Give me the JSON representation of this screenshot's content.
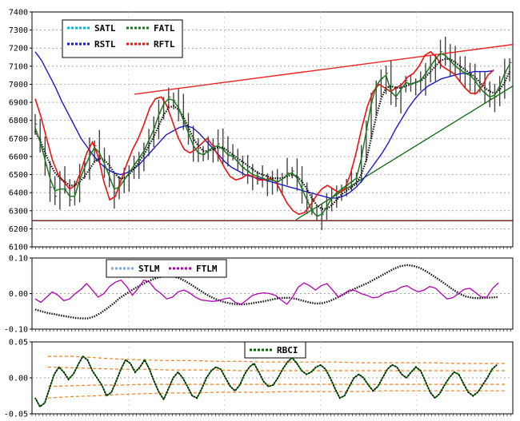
{
  "chart_data": [
    {
      "type": "line",
      "panel": "price",
      "ylim": [
        6100,
        7400
      ],
      "yticks": [
        "7400",
        "7300",
        "7200",
        "7100",
        "7000",
        "6900",
        "6800",
        "6700",
        "6600",
        "6500",
        "6400",
        "6300",
        "6200",
        "6100"
      ],
      "grid": true,
      "legend_position": "top-left",
      "series": [
        {
          "name": "SATL",
          "color": "#00bcd4"
        },
        {
          "name": "FATL",
          "color": "#1b7a1b"
        },
        {
          "name": "RSTL",
          "color": "#1a1acc"
        },
        {
          "name": "RFTL",
          "color": "#ee1111"
        }
      ],
      "bars_close": [
        6780,
        6660,
        6550,
        6430,
        6380,
        6480,
        6420,
        6360,
        6400,
        6500,
        6560,
        6620,
        6660,
        6600,
        6540,
        6470,
        6400,
        6440,
        6480,
        6520,
        6560,
        6600,
        6640,
        6700,
        6760,
        6840,
        6900,
        6930,
        6910,
        6860,
        6790,
        6720,
        6650,
        6620,
        6610,
        6640,
        6660,
        6670,
        6640,
        6610,
        6600,
        6570,
        6540,
        6520,
        6500,
        6490,
        6480,
        6470,
        6470,
        6460,
        6480,
        6510,
        6520,
        6480,
        6420,
        6360,
        6300,
        6270,
        6280,
        6320,
        6370,
        6400,
        6420,
        6440,
        6460,
        6480,
        6600,
        6750,
        6900,
        7000,
        7030,
        7060,
        6950,
        6920,
        6980,
        7020,
        7000,
        7010,
        7020,
        7060,
        7100,
        7140,
        7180,
        7170,
        7130,
        7100,
        7080,
        7060,
        7050,
        7020,
        6980,
        6950,
        6920,
        6930,
        6990,
        7060,
        7120
      ],
      "satl": [
        6740,
        6690,
        6620,
        6560,
        6510,
        6480,
        6460,
        6440,
        6440,
        6460,
        6490,
        6530,
        6570,
        6590,
        6580,
        6550,
        6510,
        6480,
        6480,
        6500,
        6530,
        6570,
        6610,
        6660,
        6710,
        6770,
        6830,
        6870,
        6880,
        6860,
        6820,
        6760,
        6700,
        6660,
        6630,
        6630,
        6640,
        6650,
        6650,
        6630,
        6610,
        6590,
        6570,
        6550,
        6530,
        6510,
        6500,
        6490,
        6480,
        6480,
        6480,
        6490,
        6500,
        6490,
        6460,
        6420,
        6370,
        6330,
        6310,
        6310,
        6330,
        6360,
        6390,
        6410,
        6430,
        6450,
        6500,
        6580,
        6700,
        6820,
        6920,
        6980,
        6990,
        6980,
        6980,
        6990,
        7000,
        7010,
        7020,
        7040,
        7070,
        7100,
        7130,
        7140,
        7140,
        7120,
        7100,
        7080,
        7060,
        7040,
        7010,
        6980,
        6960,
        6950,
        6970,
        7010,
        7070
      ],
      "fatl": [
        6760,
        6680,
        6580,
        6480,
        6410,
        6420,
        6420,
        6380,
        6380,
        6470,
        6540,
        6600,
        6650,
        6620,
        6560,
        6490,
        6420,
        6430,
        6470,
        6510,
        6550,
        6590,
        6630,
        6690,
        6750,
        6830,
        6890,
        6920,
        6910,
        6870,
        6800,
        6730,
        6660,
        6620,
        6610,
        6630,
        6650,
        6660,
        6640,
        6610,
        6600,
        6570,
        6540,
        6520,
        6500,
        6490,
        6480,
        6470,
        6470,
        6460,
        6475,
        6500,
        6510,
        6480,
        6420,
        6360,
        6300,
        6270,
        6280,
        6320,
        6370,
        6400,
        6420,
        6440,
        6460,
        6480,
        6590,
        6740,
        6890,
        6990,
        7030,
        7050,
        6960,
        6930,
        6970,
        7010,
        7000,
        7010,
        7020,
        7060,
        7100,
        7140,
        7170,
        7160,
        7130,
        7100,
        7080,
        7060,
        7050,
        7020,
        6980,
        6950,
        6930,
        6940,
        6990,
        7060,
        7110
      ],
      "rstl": [
        7180,
        7130,
        7060,
        6990,
        6910,
        6840,
        6770,
        6700,
        6650,
        6600,
        6560,
        6530,
        6510,
        6500,
        6510,
        6530,
        6560,
        6600,
        6640,
        6680,
        6720,
        6740,
        6760,
        6770,
        6760,
        6730,
        6690,
        6650,
        6610,
        6570,
        6540,
        6520,
        6500,
        6490,
        6480,
        6470,
        6460,
        6450,
        6440,
        6430,
        6420,
        6410,
        6400,
        6390,
        6380,
        6370,
        6370,
        6380,
        6400,
        6430,
        6470,
        6520,
        6570,
        6620,
        6680,
        6750,
        6810,
        6870,
        6920,
        6960,
        6990,
        7010,
        7030,
        7040,
        7050,
        7060,
        7060,
        7070,
        7070,
        7070,
        7075
      ],
      "rftl": [
        6920,
        6820,
        6700,
        6580,
        6500,
        6460,
        6420,
        6440,
        6520,
        6620,
        6680,
        6600,
        6460,
        6360,
        6380,
        6470,
        6560,
        6640,
        6700,
        6780,
        6870,
        6920,
        6930,
        6880,
        6790,
        6700,
        6640,
        6620,
        6640,
        6670,
        6700,
        6660,
        6600,
        6540,
        6490,
        6470,
        6480,
        6500,
        6490,
        6470,
        6470,
        6480,
        6460,
        6400,
        6340,
        6300,
        6280,
        6290,
        6330,
        6380,
        6420,
        6440,
        6420,
        6400,
        6420,
        6500,
        6620,
        6760,
        6880,
        6960,
        7000,
        6980,
        6960,
        6980,
        7000,
        7040,
        7060,
        7100,
        7160,
        7180,
        7150,
        7100,
        7080,
        7060,
        7020,
        6980,
        6950,
        6950,
        6990,
        7050,
        7080
      ]
    },
    {
      "type": "line",
      "panel": "oscillator",
      "ylim": [
        -0.1,
        0.1
      ],
      "yticks": [
        "0.10",
        "0.00",
        "-0.10"
      ],
      "grid": true,
      "legend_position": "top-center",
      "series": [
        {
          "name": "STLM",
          "color": "#7fa7e0",
          "values": [
            -0.045,
            -0.05,
            -0.055,
            -0.058,
            -0.062,
            -0.065,
            -0.068,
            -0.07,
            -0.07,
            -0.065,
            -0.055,
            -0.042,
            -0.028,
            -0.012,
            0.0,
            0.012,
            0.022,
            0.032,
            0.04,
            0.046,
            0.05,
            0.049,
            0.044,
            0.035,
            0.024,
            0.012,
            0.0,
            -0.01,
            -0.018,
            -0.024,
            -0.028,
            -0.03,
            -0.03,
            -0.028,
            -0.025,
            -0.022,
            -0.018,
            -0.014,
            -0.012,
            -0.012,
            -0.015,
            -0.02,
            -0.025,
            -0.028,
            -0.027,
            -0.022,
            -0.014,
            -0.005,
            0.005,
            0.014,
            0.022,
            0.03,
            0.04,
            0.05,
            0.06,
            0.07,
            0.077,
            0.08,
            0.078,
            0.072,
            0.062,
            0.05,
            0.038,
            0.025,
            0.012,
            0.0,
            -0.008,
            -0.012,
            -0.013,
            -0.012,
            -0.011,
            -0.01
          ]
        },
        {
          "name": "FTLM",
          "color": "#b300b3",
          "values": [
            -0.015,
            -0.025,
            -0.01,
            0.005,
            -0.005,
            -0.02,
            -0.015,
            0.0,
            0.012,
            0.028,
            0.01,
            -0.01,
            0.0,
            0.02,
            0.032,
            0.038,
            0.02,
            -0.005,
            0.015,
            0.038,
            0.032,
            0.012,
            0.0,
            -0.015,
            -0.01,
            0.005,
            0.01,
            0.002,
            -0.01,
            -0.018,
            -0.02,
            -0.022,
            -0.02,
            -0.015,
            -0.012,
            -0.025,
            -0.03,
            -0.018,
            -0.005,
            0.0,
            0.002,
            0.0,
            -0.005,
            -0.018,
            -0.03,
            -0.01,
            0.018,
            0.03,
            0.022,
            0.01,
            0.022,
            0.028,
            0.01,
            -0.01,
            0.0,
            0.01,
            0.008,
            0.0,
            -0.005,
            -0.012,
            -0.01,
            0.0,
            0.005,
            0.008,
            0.018,
            0.022,
            0.012,
            0.005,
            0.01,
            0.02,
            0.015,
            0.0,
            -0.015,
            -0.012,
            0.0,
            0.012,
            0.015,
            0.003,
            -0.01,
            -0.01,
            0.015,
            0.03
          ]
        }
      ]
    },
    {
      "type": "line",
      "panel": "rbci",
      "ylim": [
        -0.05,
        0.05
      ],
      "yticks": [
        "0.05",
        "0.00",
        "-0.05"
      ],
      "grid": true,
      "legend_position": "top-center",
      "series": [
        {
          "name": "RBCI",
          "color": "#006400",
          "values": [
            -0.028,
            -0.04,
            -0.035,
            -0.015,
            0.005,
            0.015,
            0.008,
            -0.002,
            0.005,
            0.018,
            0.03,
            0.025,
            0.01,
            0.0,
            -0.01,
            -0.025,
            -0.02,
            -0.005,
            0.012,
            0.025,
            0.02,
            0.008,
            0.015,
            0.025,
            0.012,
            -0.005,
            -0.02,
            -0.03,
            -0.015,
            0.0,
            0.008,
            0.0,
            -0.012,
            -0.025,
            -0.028,
            -0.015,
            0.0,
            0.01,
            0.015,
            0.012,
            0.0,
            -0.012,
            -0.018,
            -0.01,
            0.005,
            0.015,
            0.02,
            0.008,
            -0.005,
            -0.012,
            -0.01,
            0.0,
            0.012,
            0.022,
            0.028,
            0.02,
            0.01,
            0.005,
            0.008,
            0.015,
            0.018,
            0.012,
            0.0,
            -0.015,
            -0.028,
            -0.025,
            -0.012,
            0.0,
            0.005,
            0.0,
            -0.01,
            -0.018,
            -0.012,
            0.0,
            0.012,
            0.018,
            0.015,
            0.005,
            0.0,
            0.008,
            0.015,
            0.01,
            -0.005,
            -0.02,
            -0.028,
            -0.022,
            -0.01,
            0.0,
            0.008,
            0.005,
            -0.008,
            -0.02,
            -0.025,
            -0.02,
            -0.01,
            0.0,
            0.012,
            0.018
          ]
        },
        {
          "name": "upper-band-outer",
          "color": "#f07d1a",
          "values": [
            0.03,
            0.03,
            0.028,
            0.026,
            0.025,
            0.024,
            0.024,
            0.023,
            0.023,
            0.022,
            0.022,
            0.022,
            0.022,
            0.021,
            0.021,
            0.021,
            0.021,
            0.02,
            0.02,
            0.02
          ]
        },
        {
          "name": "upper-band-inner",
          "color": "#f07d1a",
          "values": [
            0.015,
            0.014,
            0.013,
            0.012,
            0.012,
            0.011,
            0.011,
            0.011,
            0.01,
            0.01,
            0.01,
            0.01,
            0.01,
            0.01,
            0.01,
            0.01,
            0.01,
            0.01,
            0.01,
            0.01
          ]
        },
        {
          "name": "lower-band-inner",
          "color": "#f07d1a",
          "values": [
            -0.012,
            -0.011,
            -0.01,
            -0.01,
            -0.009,
            -0.009,
            -0.009,
            -0.009,
            -0.009,
            -0.009,
            -0.009,
            -0.009,
            -0.009,
            -0.009,
            -0.009,
            -0.009,
            -0.009,
            -0.009,
            -0.009,
            -0.009
          ]
        },
        {
          "name": "lower-band-outer",
          "color": "#f07d1a",
          "values": [
            -0.028,
            -0.026,
            -0.025,
            -0.023,
            -0.022,
            -0.021,
            -0.021,
            -0.02,
            -0.02,
            -0.02,
            -0.019,
            -0.019,
            -0.019,
            -0.019,
            -0.018,
            -0.018,
            -0.018,
            -0.018,
            -0.018,
            -0.018
          ]
        }
      ]
    }
  ],
  "support_line": {
    "value": 6245,
    "color": "#6b1010"
  },
  "trendlines": [
    {
      "name": "resistance",
      "color": "#ee2222",
      "from": [
        6945
      ],
      "to": [
        7220
      ]
    },
    {
      "name": "support",
      "color": "#1b6e1b",
      "from": [
        6250
      ],
      "to": [
        6990
      ]
    }
  ]
}
